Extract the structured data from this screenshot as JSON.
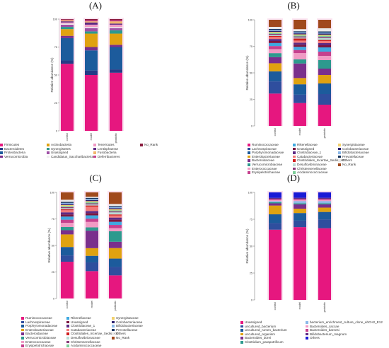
{
  "chart_data": [
    {
      "type": "bar",
      "panel": "(A)",
      "categories": [
        "control",
        "model",
        "probiotic"
      ],
      "ylabel": "Relative abundance (%)",
      "ylim": [
        0,
        100
      ],
      "yticks": [
        0,
        25,
        50,
        75,
        100
      ],
      "series": [
        {
          "name": "Firmicutes",
          "color": "#e6177f",
          "values": [
            60,
            50,
            52
          ]
        },
        {
          "name": "Bacteroidetes",
          "color": "#253b86",
          "values": [
            3,
            4,
            3
          ]
        },
        {
          "name": "Proteobacteria",
          "color": "#1c5b9c",
          "values": [
            20,
            18,
            20
          ]
        },
        {
          "name": "Verrucomicrobia",
          "color": "#7a2f8c",
          "values": [
            2,
            3,
            2
          ]
        },
        {
          "name": "Actinobacteria",
          "color": "#e0a210",
          "values": [
            6,
            12,
            10
          ]
        },
        {
          "name": "Synergistetes",
          "color": "#2d9a8e",
          "values": [
            2,
            2,
            3
          ]
        },
        {
          "name": "Unassigned",
          "color": "#9e4fa5",
          "values": [
            2,
            3,
            2
          ]
        },
        {
          "name": "Candidatus_Saccharibacteria",
          "color": "#eeeeee",
          "values": [
            1,
            1,
            1
          ]
        },
        {
          "name": "Tenericutes",
          "color": "#f09ac4",
          "values": [
            1,
            2,
            2
          ]
        },
        {
          "name": "Lentisphaerae",
          "color": "#5e2a84",
          "values": [
            1,
            2,
            1
          ]
        },
        {
          "name": "Fusobacteria",
          "color": "#f2b66d",
          "values": [
            1,
            1,
            2
          ]
        },
        {
          "name": "Deferribacteres",
          "color": "#c6408e",
          "values": [
            0.5,
            1,
            1
          ]
        },
        {
          "name": "No_Rank",
          "color": "#8a1c3e",
          "values": [
            0.5,
            1,
            1
          ]
        }
      ],
      "legend": [
        "Firmicutes",
        "Bacteroidetes",
        "Proteobacteria",
        "Verrucomicrobia",
        "Actinobacteria",
        "Synergistetes",
        "Unassigned",
        "Candidatus_Saccharibacteria",
        "Tenericutes",
        "Lentisphaerae",
        "Fusobacteria",
        "Deferribacteres",
        "No_Rank"
      ]
    },
    {
      "type": "bar",
      "panel": "(B)",
      "categories": [
        "control",
        "model",
        "probiotic"
      ],
      "ylabel": "Relative abundance (%)",
      "ylim": [
        0,
        100
      ],
      "yticks": [
        0,
        25,
        50,
        75,
        100
      ],
      "series": [
        {
          "name": "Ruminococcaceae",
          "color": "#e6177f",
          "values": [
            32,
            22,
            20
          ]
        },
        {
          "name": "Lachnospiraceae",
          "color": "#2f4e9e",
          "values": [
            12,
            8,
            10
          ]
        },
        {
          "name": "Porphyromonadaceae",
          "color": "#1c5b9c",
          "values": [
            10,
            10,
            10
          ]
        },
        {
          "name": "Enterobacteriaceae",
          "color": "#e0a210",
          "values": [
            8,
            6,
            8
          ]
        },
        {
          "name": "Bacteroidaceae",
          "color": "#7a2f8c",
          "values": [
            6,
            14,
            6
          ]
        },
        {
          "name": "Verrucomicrobiaceae",
          "color": "#2d9a8e",
          "values": [
            4,
            4,
            8
          ]
        },
        {
          "name": "Enterococcaceae",
          "color": "#f09ac4",
          "values": [
            4,
            6,
            4
          ]
        },
        {
          "name": "Erysipelotrichaceae",
          "color": "#c6408e",
          "values": [
            3,
            3,
            4
          ]
        },
        {
          "name": "Rikenellaceae",
          "color": "#3fa9e0",
          "values": [
            3,
            3,
            4
          ]
        },
        {
          "name": "Unassigned",
          "color": "#7b1740",
          "values": [
            2,
            2,
            2
          ]
        },
        {
          "name": "Clostridiaceae_1",
          "color": "#5e2a84",
          "values": [
            2,
            2,
            2
          ]
        },
        {
          "name": "Catabacteriaceae",
          "color": "#f27a7a",
          "values": [
            2,
            2,
            2
          ]
        },
        {
          "name": "Clostridiales_Incertae_Sedis_XIII",
          "color": "#d01f1f",
          "values": [
            1,
            2,
            1
          ]
        },
        {
          "name": "Desulfovibrionaceae",
          "color": "#b9dcd5",
          "values": [
            1,
            1,
            2
          ]
        },
        {
          "name": "Christensenellaceae",
          "color": "#8a3b7a",
          "values": [
            1,
            1,
            1
          ]
        },
        {
          "name": "Acidaminococcaceae",
          "color": "#7fcf9a",
          "values": [
            1,
            1,
            1
          ]
        },
        {
          "name": "Synergistaceae",
          "color": "#f2d16d",
          "values": [
            1,
            1,
            1
          ]
        },
        {
          "name": "Coriobacteriaceae",
          "color": "#2a1f6e",
          "values": [
            1,
            1,
            1
          ]
        },
        {
          "name": "Bifidobacteriaceae",
          "color": "#8bb8e8",
          "values": [
            1,
            1,
            1
          ]
        },
        {
          "name": "Prevotellaceae",
          "color": "#16345e",
          "values": [
            1,
            1,
            1
          ]
        },
        {
          "name": "Others",
          "color": "#e9e9e9",
          "values": [
            2,
            2,
            3
          ]
        },
        {
          "name": "No_Rank",
          "color": "#a0491d",
          "values": [
            7,
            9,
            8
          ]
        }
      ],
      "legend": [
        "Ruminococcaceae",
        "Lachnospiraceae",
        "Porphyromonadaceae",
        "Enterobacteriaceae",
        "Bacteroidaceae",
        "Verrucomicrobiaceae",
        "Enterococcaceae",
        "Erysipelotrichaceae",
        "Rikenellaceae",
        "Unassigned",
        "Clostridiaceae_1",
        "Catabacteriaceae",
        "Clostridiales_Incertae_Sedis_XIII",
        "Desulfovibrionaceae",
        "Christensenellaceae",
        "Acidaminococcaceae",
        "Synergistaceae",
        "Coriobacteriaceae",
        "Bifidobacteriaceae",
        "Prevotellaceae",
        "Others",
        "No_Rank"
      ]
    },
    {
      "type": "bar",
      "panel": "(C)",
      "categories": [
        "control",
        "model",
        "probiotic"
      ],
      "ylabel": "Relative abundance (%)",
      "ylim": [
        0,
        100
      ],
      "yticks": [
        0,
        25,
        50,
        75,
        100
      ],
      "series": [
        {
          "name": "Ruminococcaceae",
          "color": "#e6177f",
          "values": [
            35,
            25,
            22
          ]
        },
        {
          "name": "Lachnospiraceae",
          "color": "#2f4e9e",
          "values": [
            6,
            8,
            8
          ]
        },
        {
          "name": "Porphyromonadaceae",
          "color": "#1c5b9c",
          "values": [
            8,
            6,
            8
          ]
        },
        {
          "name": "Enterobacteriaceae",
          "color": "#e0a210",
          "values": [
            12,
            7,
            10
          ]
        },
        {
          "name": "Bacteroidaceae",
          "color": "#7a2f8c",
          "values": [
            4,
            16,
            6
          ]
        },
        {
          "name": "Verrucomicrobiaceae",
          "color": "#2d9a8e",
          "values": [
            3,
            3,
            10
          ]
        },
        {
          "name": "Enterococcaceae",
          "color": "#f09ac4",
          "values": [
            4,
            5,
            3
          ]
        },
        {
          "name": "Erysipelotrichaceae",
          "color": "#c6408e",
          "values": [
            3,
            3,
            3
          ]
        },
        {
          "name": "Rikenellaceae",
          "color": "#3fa9e0",
          "values": [
            3,
            3,
            3
          ]
        },
        {
          "name": "Unassigned",
          "color": "#7b1740",
          "values": [
            2,
            2,
            2
          ]
        },
        {
          "name": "Clostridiaceae_1",
          "color": "#5e2a84",
          "values": [
            2,
            2,
            2
          ]
        },
        {
          "name": "Catabacteriaceae",
          "color": "#f27a7a",
          "values": [
            2,
            4,
            2
          ]
        },
        {
          "name": "Clostridiales_Incertae_Sedis_XIII",
          "color": "#d01f1f",
          "values": [
            1,
            1,
            1
          ]
        },
        {
          "name": "Desulfovibrionaceae",
          "color": "#b9dcd5",
          "values": [
            1,
            1,
            2
          ]
        },
        {
          "name": "Christensenellaceae",
          "color": "#8a3b7a",
          "values": [
            1,
            1,
            1
          ]
        },
        {
          "name": "Acidaminococcaceae",
          "color": "#7fcf9a",
          "values": [
            1,
            1,
            1
          ]
        },
        {
          "name": "Synergistaceae",
          "color": "#f2d16d",
          "values": [
            1,
            1,
            1
          ]
        },
        {
          "name": "Coriobacteriaceae",
          "color": "#2a1f6e",
          "values": [
            1,
            1,
            1
          ]
        },
        {
          "name": "Bifidobacteriaceae",
          "color": "#8bb8e8",
          "values": [
            1,
            1,
            1
          ]
        },
        {
          "name": "Prevotellaceae",
          "color": "#16345e",
          "values": [
            1,
            1,
            1
          ]
        },
        {
          "name": "Others",
          "color": "#e9e9e9",
          "values": [
            2,
            1,
            2
          ]
        },
        {
          "name": "No_Rank",
          "color": "#a0491d",
          "values": [
            7,
            4,
            11
          ]
        }
      ],
      "legend": [
        "Ruminococcaceae",
        "Lachnospiraceae",
        "Porphyromonadaceae",
        "Enterobacteriaceae",
        "Bacteroidaceae",
        "Verrucomicrobiaceae",
        "Enterococcaceae",
        "Erysipelotrichaceae",
        "Rikenellaceae",
        "Unassigned",
        "Clostridiaceae_1",
        "Catabacteriaceae",
        "Clostridiales_Incertae_Sedis_XIII",
        "Desulfovibrionaceae",
        "Christensenellaceae",
        "Acidaminococcaceae",
        "Synergistaceae",
        "Coriobacteriaceae",
        "Bifidobacteriaceae",
        "Prevotellaceae",
        "Others",
        "No_Rank"
      ]
    },
    {
      "type": "bar",
      "panel": "(D)",
      "categories": [
        "control",
        "model",
        "probiotic"
      ],
      "ylabel": "Relative abundance (%)",
      "ylim": [
        0,
        100
      ],
      "yticks": [
        0,
        25,
        50,
        75,
        100
      ],
      "series": [
        {
          "name": "Unassigned",
          "color": "#e6177f",
          "values": [
            64,
            67,
            66
          ]
        },
        {
          "name": "uncultured_bacterium",
          "color": "#2f4e9e",
          "values": [
            6,
            6,
            8
          ]
        },
        {
          "name": "uncultured_rumen_bacterium",
          "color": "#1c5b9c",
          "values": [
            8,
            7,
            7
          ]
        },
        {
          "name": "uncultured_organism",
          "color": "#e0a210",
          "values": [
            8,
            4,
            4
          ]
        },
        {
          "name": "Bacteroides_dorei",
          "color": "#7a2f8c",
          "values": [
            2,
            4,
            3
          ]
        },
        {
          "name": "Clostridium_paraputrificum",
          "color": "#2d9a8e",
          "values": [
            1,
            1,
            1
          ]
        },
        {
          "name": "bacterium_enrichment_culture_clone_ahCH2_E12",
          "color": "#8bb8e8",
          "values": [
            1,
            2,
            2
          ]
        },
        {
          "name": "Bacteroides_caccae",
          "color": "#f09ac4",
          "values": [
            1,
            1,
            1
          ]
        },
        {
          "name": "Bacteroides_barnesi",
          "color": "#c6408e",
          "values": [
            1,
            1,
            1
          ]
        },
        {
          "name": "Bifidobacterium_magnum",
          "color": "#5e2a84",
          "values": [
            1,
            1,
            1
          ]
        },
        {
          "name": "Others",
          "color": "#1a1ad6",
          "values": [
            5,
            5,
            5
          ]
        }
      ],
      "legend": [
        "Unassigned",
        "uncultured_bacterium",
        "uncultured_rumen_bacterium",
        "uncultured_organism",
        "Bacteroides_dorei",
        "Clostridium_paraputrificum",
        "bacterium_enrichment_culture_clone_ahCH2_E12",
        "Bacteroides_caccae",
        "Bacteroides_barnesi",
        "Bifidobacterium_magnum",
        "Others"
      ]
    }
  ]
}
